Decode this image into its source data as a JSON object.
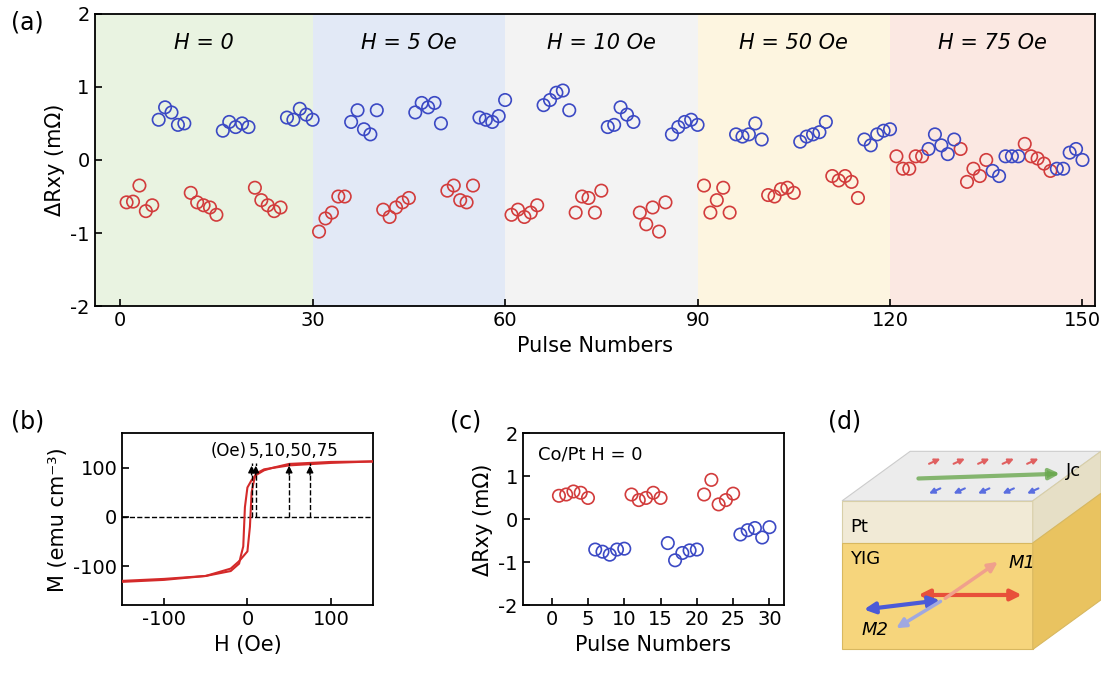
{
  "chart_data": [
    {
      "type": "scatter",
      "panel_label": "(a)",
      "xlabel": "Pulse Numbers",
      "ylabel": "ΔRxy (mΩ)",
      "xlim": [
        -4,
        152
      ],
      "xticks": [
        0,
        30,
        60,
        90,
        120,
        150
      ],
      "ylim": [
        -2,
        2
      ],
      "yticks": [
        -2,
        -1,
        0,
        1,
        2
      ],
      "regions": [
        {
          "label": "H = 0",
          "span": [
            -4,
            30
          ],
          "color": "#e9f3e1"
        },
        {
          "label": "H = 5 Oe",
          "span": [
            30,
            60
          ],
          "color": "#e2e9f6"
        },
        {
          "label": "H = 10 Oe",
          "span": [
            60,
            90
          ],
          "color": "#f3f3f3"
        },
        {
          "label": "H = 50 Oe",
          "span": [
            90,
            120
          ],
          "color": "#fdf5e0"
        },
        {
          "label": "H = 75 Oe",
          "span": [
            120,
            152
          ],
          "color": "#fbe8e2"
        }
      ],
      "series": [
        {
          "color": "#d23c3c",
          "marker": "open_circle",
          "x": [
            1,
            2,
            3,
            4,
            5,
            11,
            12,
            13,
            14,
            15,
            21,
            22,
            23,
            24,
            25,
            31,
            32,
            33,
            34,
            35,
            41,
            42,
            43,
            44,
            45,
            51,
            52,
            53,
            54,
            55,
            61,
            62,
            63,
            64,
            65,
            71,
            72,
            73,
            74,
            75,
            81,
            82,
            83,
            84,
            85,
            91,
            92,
            93,
            94,
            95,
            101,
            102,
            103,
            104,
            105,
            111,
            112,
            113,
            114,
            115,
            121,
            122,
            123,
            124,
            125,
            131,
            132,
            133,
            134,
            135,
            141,
            142,
            143,
            144,
            145
          ],
          "values": [
            -0.58,
            -0.57,
            -0.35,
            -0.7,
            -0.62,
            -0.45,
            -0.58,
            -0.62,
            -0.65,
            -0.75,
            -0.38,
            -0.55,
            -0.62,
            -0.7,
            -0.65,
            -0.98,
            -0.8,
            -0.72,
            -0.5,
            -0.5,
            -0.68,
            -0.78,
            -0.65,
            -0.58,
            -0.52,
            -0.42,
            -0.35,
            -0.55,
            -0.58,
            -0.35,
            -0.75,
            -0.68,
            -0.78,
            -0.72,
            -0.62,
            -0.72,
            -0.5,
            -0.52,
            -0.72,
            -0.42,
            -0.72,
            -0.88,
            -0.65,
            -0.98,
            -0.58,
            -0.35,
            -0.72,
            -0.55,
            -0.38,
            -0.72,
            -0.48,
            -0.5,
            -0.4,
            -0.38,
            -0.45,
            -0.22,
            -0.28,
            -0.22,
            -0.3,
            -0.52,
            0.05,
            -0.12,
            -0.12,
            0.05,
            0.05,
            0.15,
            -0.3,
            -0.12,
            -0.22,
            0.0,
            0.22,
            0.05,
            0.02,
            -0.05,
            -0.15
          ]
        },
        {
          "color": "#3b49c4",
          "marker": "open_circle",
          "x": [
            6,
            7,
            8,
            9,
            10,
            16,
            17,
            18,
            19,
            20,
            26,
            27,
            28,
            29,
            30,
            36,
            37,
            38,
            39,
            40,
            46,
            47,
            48,
            49,
            50,
            56,
            57,
            58,
            59,
            60,
            66,
            67,
            68,
            69,
            70,
            76,
            77,
            78,
            79,
            80,
            86,
            87,
            88,
            89,
            90,
            96,
            97,
            98,
            99,
            100,
            106,
            107,
            108,
            109,
            110,
            116,
            117,
            118,
            119,
            120,
            126,
            127,
            128,
            129,
            130,
            136,
            137,
            138,
            139,
            140,
            146,
            147,
            148,
            149,
            150
          ],
          "values": [
            0.55,
            0.72,
            0.65,
            0.48,
            0.5,
            0.4,
            0.52,
            0.45,
            0.5,
            0.45,
            0.58,
            0.55,
            0.7,
            0.62,
            0.55,
            0.52,
            0.68,
            0.42,
            0.35,
            0.68,
            0.65,
            0.78,
            0.72,
            0.78,
            0.5,
            0.58,
            0.55,
            0.52,
            0.6,
            0.82,
            0.75,
            0.82,
            0.92,
            0.95,
            0.68,
            0.45,
            0.48,
            0.72,
            0.62,
            0.52,
            0.35,
            0.45,
            0.52,
            0.55,
            0.48,
            0.35,
            0.32,
            0.35,
            0.5,
            0.28,
            0.25,
            0.32,
            0.35,
            0.38,
            0.52,
            0.28,
            0.2,
            0.35,
            0.4,
            0.42,
            0.15,
            0.35,
            0.2,
            0.08,
            0.28,
            -0.15,
            -0.22,
            0.05,
            0.05,
            0.05,
            -0.12,
            -0.12,
            0.1,
            0.15,
            0.0
          ]
        }
      ]
    },
    {
      "type": "line",
      "panel_label": "(b)",
      "xlabel": "H (Oe)",
      "ylabel": "M (emu cm⁻³)",
      "xlim": [
        -150,
        150
      ],
      "xticks": [
        -100,
        0,
        100
      ],
      "ylim": [
        -180,
        170
      ],
      "yticks": [
        -100,
        0,
        100
      ],
      "series": [
        {
          "color": "#d42a2a",
          "x": [
            150,
            100,
            50,
            30,
            20,
            10,
            5,
            0,
            -3,
            -5,
            -8,
            -10,
            -20,
            -50,
            -100,
            -150
          ],
          "values": [
            113,
            112,
            108,
            100,
            95,
            85,
            75,
            60,
            20,
            -60,
            -80,
            -95,
            -110,
            -120,
            -126,
            -130
          ]
        },
        {
          "color": "#d42a2a",
          "x": [
            -150,
            -100,
            -50,
            -20,
            -10,
            0,
            3,
            5,
            8,
            10,
            20,
            50,
            100,
            150
          ],
          "values": [
            -132,
            -128,
            -120,
            -105,
            -90,
            -70,
            -20,
            50,
            75,
            88,
            97,
            105,
            110,
            113
          ]
        }
      ],
      "field_markers": {
        "H": [
          5,
          10,
          50,
          75
        ],
        "M": [
          110,
          110,
          110,
          110
        ],
        "unit_label": "(Oe)",
        "label": "5,10,50,75"
      }
    },
    {
      "type": "scatter",
      "panel_label": "(c)",
      "xlabel": "Pulse Numbers",
      "ylabel": "ΔRxy (mΩ)",
      "xlim": [
        -4,
        32
      ],
      "xticks": [
        0,
        5,
        10,
        15,
        20,
        25,
        30
      ],
      "ylim": [
        -2,
        2
      ],
      "yticks": [
        -2,
        -1,
        0,
        1,
        2
      ],
      "annotations": [
        {
          "text": "Co/Pt H = 0"
        }
      ],
      "series": [
        {
          "color": "#d23c3c",
          "marker": "open_circle",
          "x": [
            1,
            2,
            3,
            4,
            5,
            11,
            12,
            13,
            14,
            15,
            21,
            22,
            23,
            24,
            25
          ],
          "values": [
            0.55,
            0.58,
            0.65,
            0.62,
            0.5,
            0.58,
            0.45,
            0.5,
            0.62,
            0.5,
            0.58,
            0.92,
            0.35,
            0.45,
            0.6
          ]
        },
        {
          "color": "#3b49c4",
          "marker": "open_circle",
          "x": [
            6,
            7,
            8,
            9,
            10,
            16,
            17,
            18,
            19,
            20,
            26,
            27,
            28,
            29,
            30
          ],
          "values": [
            -0.7,
            -0.75,
            -0.82,
            -0.7,
            -0.68,
            -0.55,
            -0.95,
            -0.78,
            -0.72,
            -0.7,
            -0.35,
            -0.25,
            -0.2,
            -0.42,
            -0.18
          ]
        }
      ]
    }
  ],
  "diagram": {
    "panel_label": "(d)",
    "layers": [
      "Pt",
      "YIG"
    ],
    "current": "Jc",
    "moments": [
      "M1",
      "M2"
    ]
  }
}
